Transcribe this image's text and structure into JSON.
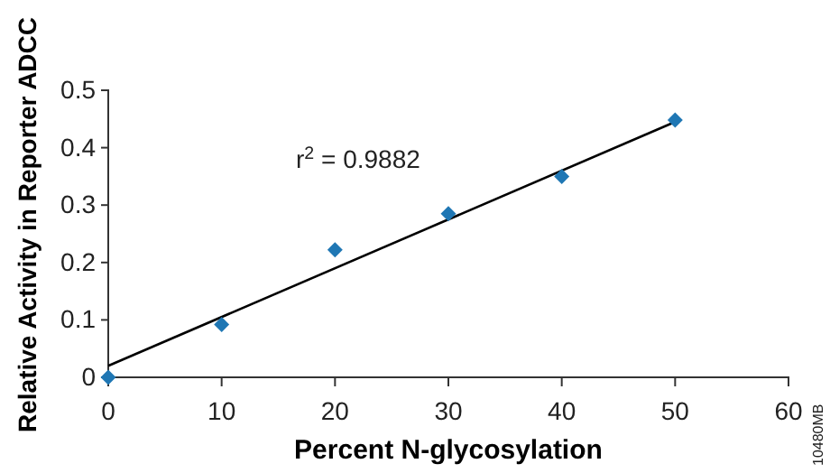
{
  "chart_data": {
    "type": "scatter",
    "xlabel": "Percent N-glycosylation",
    "ylabel": "Relative Activity in Reporter ADCC",
    "xlim": [
      0,
      60
    ],
    "ylim": [
      0,
      0.5
    ],
    "xticks": [
      0,
      10,
      20,
      30,
      40,
      50,
      60
    ],
    "yticks": [
      0,
      0.1,
      0.2,
      0.3,
      0.4,
      0.5
    ],
    "grid": false,
    "series": [
      {
        "marker": "diamond",
        "color": "#1f77b4",
        "x": [
          0,
          10,
          20,
          30,
          40,
          50
        ],
        "values": [
          0,
          0.092,
          0.222,
          0.285,
          0.35,
          0.448
        ]
      },
      {
        "type": "line",
        "color": "#000000",
        "x": [
          0,
          50
        ],
        "values": [
          0.02,
          0.445
        ],
        "line_style": "solid"
      }
    ],
    "annotations": [
      "r$^{2}$ = 0.9882",
      "10480MB"
    ]
  }
}
